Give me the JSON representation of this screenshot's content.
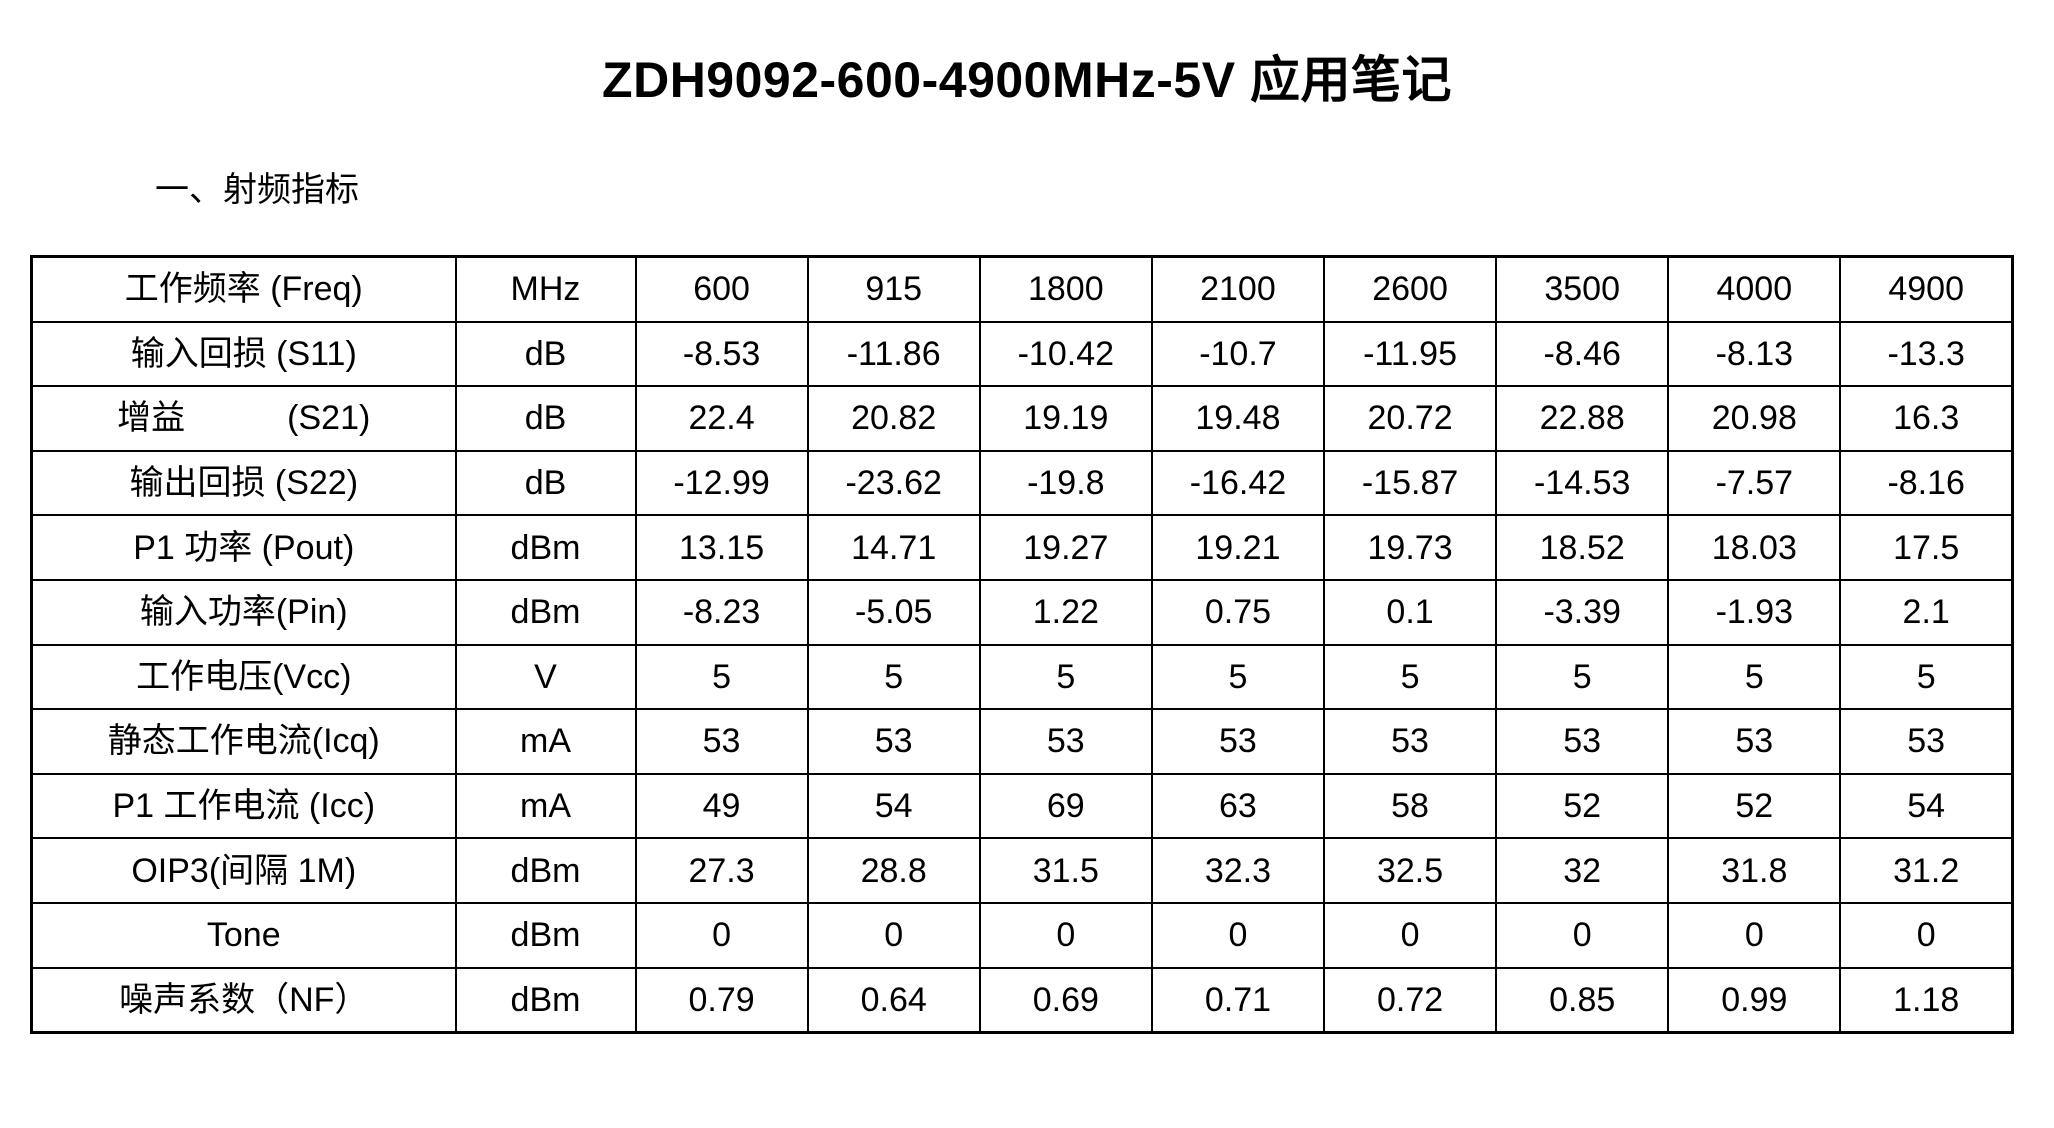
{
  "page": {
    "title": "ZDH9092-600-4900MHz-5V  应用笔记",
    "section_heading": "一、射频指标"
  },
  "table": {
    "rows": [
      {
        "label": "工作频率  (Freq)",
        "unit": "MHz",
        "values": [
          "600",
          "915",
          "1800",
          "2100",
          "2600",
          "3500",
          "4000",
          "4900"
        ]
      },
      {
        "label": "输入回损  (S11)",
        "unit": "dB",
        "values": [
          "-8.53",
          "-11.86",
          "-10.42",
          "-10.7",
          "-11.95",
          "-8.46",
          "-8.13",
          "-13.3"
        ]
      },
      {
        "label": "增益　　　(S21)",
        "unit": "dB",
        "values": [
          "22.4",
          "20.82",
          "19.19",
          "19.48",
          "20.72",
          "22.88",
          "20.98",
          "16.3"
        ]
      },
      {
        "label": "输出回损  (S22)",
        "unit": "dB",
        "values": [
          "-12.99",
          "-23.62",
          "-19.8",
          "-16.42",
          "-15.87",
          "-14.53",
          "-7.57",
          "-8.16"
        ]
      },
      {
        "label": "P1 功率  (Pout)",
        "unit": "dBm",
        "values": [
          "13.15",
          "14.71",
          "19.27",
          "19.21",
          "19.73",
          "18.52",
          "18.03",
          "17.5"
        ]
      },
      {
        "label": "输入功率(Pin)",
        "unit": "dBm",
        "values": [
          "-8.23",
          "-5.05",
          "1.22",
          "0.75",
          "0.1",
          "-3.39",
          "-1.93",
          "2.1"
        ]
      },
      {
        "label": "工作电压(Vcc)",
        "unit": "V",
        "values": [
          "5",
          "5",
          "5",
          "5",
          "5",
          "5",
          "5",
          "5"
        ]
      },
      {
        "label": "静态工作电流(Icq)",
        "unit": "mA",
        "values": [
          "53",
          "53",
          "53",
          "53",
          "53",
          "53",
          "53",
          "53"
        ]
      },
      {
        "label": "P1 工作电流  (Icc)",
        "unit": "mA",
        "values": [
          "49",
          "54",
          "69",
          "63",
          "58",
          "52",
          "52",
          "54"
        ]
      },
      {
        "label": "OIP3(间隔 1M)",
        "unit": "dBm",
        "values": [
          "27.3",
          "28.8",
          "31.5",
          "32.3",
          "32.5",
          "32",
          "31.8",
          "31.2"
        ]
      },
      {
        "label": "Tone",
        "unit": "dBm",
        "values": [
          "0",
          "0",
          "0",
          "0",
          "0",
          "0",
          "0",
          "0"
        ]
      },
      {
        "label": "噪声系数（NF）",
        "unit": "dBm",
        "values": [
          "0.79",
          "0.64",
          "0.69",
          "0.71",
          "0.72",
          "0.85",
          "0.99",
          "1.18"
        ]
      }
    ]
  }
}
